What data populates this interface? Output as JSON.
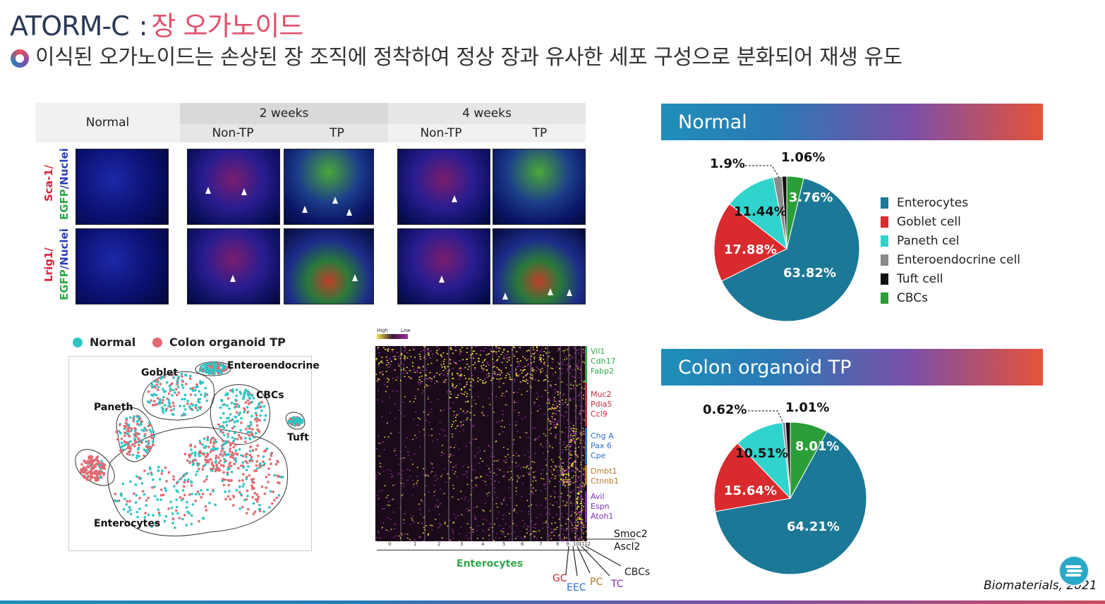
{
  "header": {
    "title": "ATORM-C",
    "subtitle": "장 오가노이드",
    "bullet": "이식된 오가노이드는 손상된 장 조직에 정착하여 정상 장과 유사한 세포 구성으로 분화되어 재생 유도"
  },
  "microscopy": {
    "columns": {
      "normal": "Normal",
      "two_weeks": "2 weeks",
      "four_weeks": "4 weeks",
      "non_tp": "Non-TP",
      "tp": "TP"
    },
    "rows": [
      {
        "marker": "Sca-1/",
        "egfp": "EGFP",
        "nuclei": "/Nuclei"
      },
      {
        "marker": "Lrig1/",
        "egfp": "EGFP",
        "nuclei": "/Nuclei"
      }
    ]
  },
  "tsne": {
    "legend": [
      {
        "label": "Normal",
        "color": "#2ec4c4"
      },
      {
        "label": "Colon organoid TP",
        "color": "#e26a72"
      }
    ],
    "clusters": [
      "Goblet",
      "Enteroendocrine",
      "CBCs",
      "Paneth",
      "Tuft",
      "Enterocytes"
    ]
  },
  "heatmap": {
    "scale_high": "High",
    "scale_low": "Low",
    "x_ticks": [
      "0",
      "1",
      "2",
      "3",
      "4",
      "5",
      "6",
      "7",
      "8",
      "9",
      "10",
      "11",
      "12"
    ],
    "gene_groups": [
      {
        "genes": [
          "Vil1",
          "Cdh17",
          "Fabp2"
        ],
        "color": "#2fa84a"
      },
      {
        "genes": [
          "Muc2",
          "Pdia5",
          "Ccl9"
        ],
        "color": "#c8283c"
      },
      {
        "genes": [
          "Chg A",
          "Pax 6",
          "Cpe"
        ],
        "color": "#2a6fc8"
      },
      {
        "genes": [
          "Dmbt1",
          "Ctnnb1"
        ],
        "color": "#b8782a"
      },
      {
        "genes": [
          "Avil",
          "Espn",
          "Atoh1"
        ],
        "color": "#7a2fb0"
      }
    ],
    "extra_genes": [
      "Smoc2",
      "Ascl2"
    ],
    "group_label": "Enterocytes",
    "cell_types": [
      {
        "label": "GC",
        "color": "#c8283c"
      },
      {
        "label": "EEC",
        "color": "#2a6fc8"
      },
      {
        "label": "PC",
        "color": "#b8782a"
      },
      {
        "label": "TC",
        "color": "#7a2fb0"
      },
      {
        "label": "CBCs",
        "color": "#222222"
      }
    ]
  },
  "pies": [
    {
      "banner": "Normal",
      "slices": [
        {
          "label": "Enterocytes",
          "value": 63.82,
          "text": "63.82%",
          "color": "#1b7896"
        },
        {
          "label": "Goblet cell",
          "value": 17.88,
          "text": "17.88%",
          "color": "#d92a2e"
        },
        {
          "label": "Paneth cel",
          "value": 11.44,
          "text": "11.44%",
          "color": "#30d4cc"
        },
        {
          "label": "Enteroendocrine cell",
          "value": 1.9,
          "text": "1.9%",
          "color": "#8a8a8a"
        },
        {
          "label": "Tuft cell",
          "value": 1.06,
          "text": "1.06%",
          "color": "#111111"
        },
        {
          "label": "CBCs",
          "value": 3.76,
          "text": "3.76%",
          "color": "#2a9e38"
        }
      ]
    },
    {
      "banner": "Colon organoid TP",
      "slices": [
        {
          "label": "Enterocytes",
          "value": 64.21,
          "text": "64.21%",
          "color": "#1b7896"
        },
        {
          "label": "Goblet cell",
          "value": 15.64,
          "text": "15.64%",
          "color": "#d92a2e"
        },
        {
          "label": "Paneth cel",
          "value": 10.51,
          "text": "10.51%",
          "color": "#30d4cc"
        },
        {
          "label": "Enteroendocrine cell",
          "value": 0.62,
          "text": "0.62%",
          "color": "#8a8a8a"
        },
        {
          "label": "Tuft cell",
          "value": 1.01,
          "text": "1.01%",
          "color": "#111111"
        },
        {
          "label": "CBCs",
          "value": 8.01,
          "text": "8.01%",
          "color": "#2a9e38"
        }
      ]
    }
  ],
  "legend_title_colors": {
    "normal_banner": "#1f8fb8"
  },
  "citation": "Biomaterials, 2021",
  "logo_icon": "company-logo-icon",
  "chart_data": [
    {
      "type": "pie",
      "title": "Normal",
      "categories": [
        "Enterocytes",
        "Goblet cell",
        "Paneth cel",
        "Enteroendocrine cell",
        "Tuft cell",
        "CBCs"
      ],
      "values": [
        63.82,
        17.88,
        11.44,
        1.9,
        1.06,
        3.76
      ]
    },
    {
      "type": "pie",
      "title": "Colon organoid TP",
      "categories": [
        "Enterocytes",
        "Goblet cell",
        "Paneth cel",
        "Enteroendocrine cell",
        "Tuft cell",
        "CBCs"
      ],
      "values": [
        64.21,
        15.64,
        10.51,
        0.62,
        1.01,
        8.01
      ]
    }
  ]
}
